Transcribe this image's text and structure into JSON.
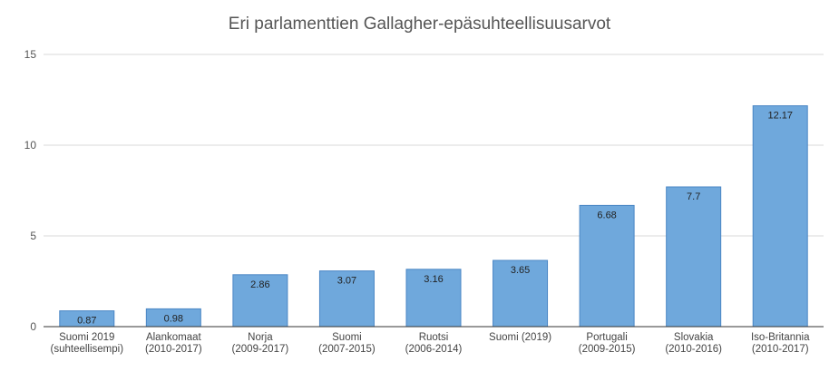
{
  "chart_data": {
    "type": "bar",
    "title": "Eri parlamenttien Gallagher-epäsuhteellisuusarvot",
    "xlabel": "",
    "ylabel": "",
    "ylim": [
      0,
      15
    ],
    "yticks": [
      0,
      5,
      10,
      15
    ],
    "grid": true,
    "categories": [
      [
        "Suomi 2019",
        "(suhteellisempi)"
      ],
      [
        "Alankomaat",
        "(2010-2017)"
      ],
      [
        "Norja",
        "(2009-2017)"
      ],
      [
        "Suomi",
        "(2007-2015)"
      ],
      [
        "Ruotsi",
        "(2006-2014)"
      ],
      [
        "Suomi (2019)"
      ],
      [
        "Portugali",
        "(2009-2015)"
      ],
      [
        "Slovakia",
        "(2010-2016)"
      ],
      [
        "Iso-Britannia",
        "(2010-2017)"
      ]
    ],
    "values": [
      0.87,
      0.98,
      2.86,
      3.07,
      3.16,
      3.65,
      6.68,
      7.7,
      12.17
    ],
    "data_labels": [
      "0.87",
      "0.98",
      "2.86",
      "3.07",
      "3.16",
      "3.65",
      "6.68",
      "7.7",
      "12.17"
    ],
    "colors": {
      "bar": "#6fa8dc",
      "bar_stroke": "#4a86c5",
      "grid": "#d9d9d9",
      "axis": "#333333"
    }
  }
}
